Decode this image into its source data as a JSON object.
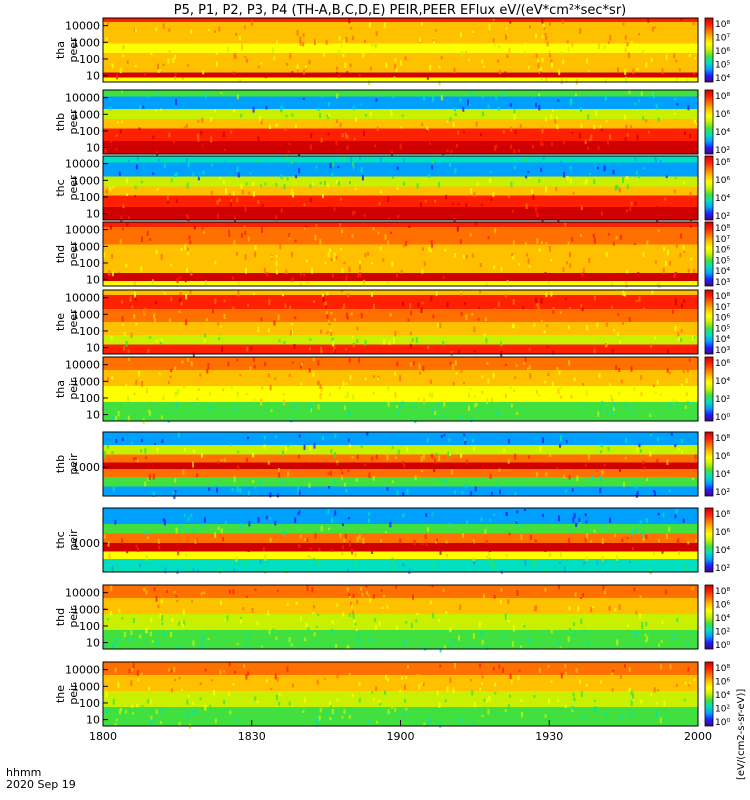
{
  "title": "P5, P1, P2, P3, P4 (TH-A,B,C,D,E) PEIR,PEER EFlux eV/(eV*cm²*sec*sr)",
  "colorbar_label": "[eV/(cm2-s-sr-eV)]",
  "time_axis": {
    "label": "hhmm",
    "date": "2020 Sep 19",
    "ticks": [
      "1800",
      "1830",
      "1900",
      "1930",
      "2000"
    ]
  },
  "colors": {
    "spectrum": [
      "#4b0082",
      "#1e1eff",
      "#00a0ff",
      "#00e0c0",
      "#40e040",
      "#c8f000",
      "#ffff00",
      "#ffc000",
      "#ff7000",
      "#ff2000",
      "#d00000"
    ],
    "background": "#ffffff"
  },
  "chart_data": [
    {
      "type": "heatmap",
      "probe": "tha",
      "ylabel_top": "tha",
      "ylabel_bottom": "peer",
      "scale": "log",
      "yticks": [
        "10",
        "100",
        "1000",
        "10000"
      ],
      "cbar_ticks": [
        "10⁸",
        "10⁷",
        "10⁶",
        "10⁵",
        "10⁴"
      ],
      "bands": [
        [
          0,
          0.06,
          9
        ],
        [
          0.06,
          0.4,
          7
        ],
        [
          0.4,
          0.55,
          6
        ],
        [
          0.55,
          0.85,
          7
        ],
        [
          0.85,
          0.93,
          10
        ],
        [
          0.93,
          1,
          6
        ]
      ]
    },
    {
      "type": "heatmap",
      "probe": "thb",
      "ylabel_top": "thb",
      "ylabel_bottom": "peer",
      "scale": "log",
      "yticks": [
        "10",
        "100",
        "1000",
        "10000"
      ],
      "cbar_ticks": [
        "10⁸",
        "10⁶",
        "10⁴",
        "10²"
      ],
      "bands": [
        [
          0,
          0.1,
          4
        ],
        [
          0.1,
          0.3,
          2
        ],
        [
          0.3,
          0.45,
          5
        ],
        [
          0.45,
          0.6,
          7
        ],
        [
          0.6,
          0.8,
          9
        ],
        [
          0.8,
          1,
          10
        ]
      ]
    },
    {
      "type": "heatmap",
      "probe": "thc",
      "ylabel_top": "thc",
      "ylabel_bottom": "peer",
      "scale": "log",
      "yticks": [
        "10",
        "100",
        "1000",
        "10000"
      ],
      "cbar_ticks": [
        "10⁸",
        "10⁶",
        "10⁴",
        "10²"
      ],
      "bands": [
        [
          0,
          0.1,
          3
        ],
        [
          0.1,
          0.32,
          2
        ],
        [
          0.32,
          0.48,
          5
        ],
        [
          0.48,
          0.62,
          7
        ],
        [
          0.62,
          0.8,
          9
        ],
        [
          0.8,
          1,
          10
        ]
      ]
    },
    {
      "type": "heatmap",
      "probe": "thd",
      "ylabel_top": "thd",
      "ylabel_bottom": "peer",
      "scale": "log",
      "yticks": [
        "10",
        "100",
        "1000",
        "10000"
      ],
      "cbar_ticks": [
        "10⁸",
        "10⁷",
        "10⁶",
        "10⁵",
        "10⁴",
        "10³"
      ],
      "bands": [
        [
          0,
          0.08,
          9
        ],
        [
          0.08,
          0.35,
          8
        ],
        [
          0.35,
          0.55,
          7
        ],
        [
          0.55,
          0.8,
          7
        ],
        [
          0.8,
          0.92,
          10
        ],
        [
          0.92,
          1,
          6
        ]
      ]
    },
    {
      "type": "heatmap",
      "probe": "the",
      "ylabel_top": "the",
      "ylabel_bottom": "peer",
      "scale": "log",
      "yticks": [
        "10",
        "100",
        "1000",
        "10000"
      ],
      "cbar_ticks": [
        "10⁸",
        "10⁷",
        "10⁶",
        "10⁵",
        "10⁴",
        "10³"
      ],
      "bands": [
        [
          0,
          0.08,
          7
        ],
        [
          0.08,
          0.3,
          9
        ],
        [
          0.3,
          0.5,
          8
        ],
        [
          0.5,
          0.7,
          7
        ],
        [
          0.7,
          0.85,
          5
        ],
        [
          0.85,
          1,
          9
        ]
      ]
    },
    {
      "type": "heatmap",
      "probe": "tha",
      "ylabel_top": "tha",
      "ylabel_bottom": "peir",
      "scale": "log",
      "yticks": [
        "10",
        "100",
        "1000",
        "10000"
      ],
      "cbar_ticks": [
        "10⁶",
        "10⁴",
        "10²",
        "10⁰"
      ],
      "bands": [
        [
          0,
          0.2,
          8
        ],
        [
          0.2,
          0.45,
          7
        ],
        [
          0.45,
          0.7,
          6
        ],
        [
          0.7,
          1,
          4
        ]
      ]
    },
    {
      "type": "heatmap",
      "probe": "thb",
      "ylabel_top": "thb",
      "ylabel_bottom": "peir",
      "scale": "log",
      "yticks": [
        "1000"
      ],
      "cbar_ticks": [
        "10⁸",
        "10⁶",
        "10⁴",
        "10²"
      ],
      "bands": [
        [
          0,
          0.2,
          2
        ],
        [
          0.2,
          0.35,
          5
        ],
        [
          0.35,
          0.48,
          8
        ],
        [
          0.48,
          0.58,
          10
        ],
        [
          0.58,
          0.7,
          8
        ],
        [
          0.7,
          0.85,
          4
        ],
        [
          0.85,
          1,
          2
        ]
      ]
    },
    {
      "type": "heatmap",
      "probe": "thc",
      "ylabel_top": "thc",
      "ylabel_bottom": "peir",
      "scale": "log",
      "yticks": [
        "1000"
      ],
      "cbar_ticks": [
        "10⁸",
        "10⁶",
        "10⁴",
        "10²"
      ],
      "bands": [
        [
          0,
          0.25,
          2
        ],
        [
          0.25,
          0.4,
          4
        ],
        [
          0.4,
          0.55,
          8
        ],
        [
          0.55,
          0.68,
          10
        ],
        [
          0.68,
          0.8,
          6
        ],
        [
          0.8,
          1,
          3
        ]
      ]
    },
    {
      "type": "heatmap",
      "probe": "thd",
      "ylabel_top": "thd",
      "ylabel_bottom": "peir",
      "scale": "log",
      "yticks": [
        "10",
        "100",
        "1000",
        "10000"
      ],
      "cbar_ticks": [
        "10⁸",
        "10⁶",
        "10⁴",
        "10²",
        "10⁰"
      ],
      "bands": [
        [
          0,
          0.2,
          8
        ],
        [
          0.2,
          0.45,
          7
        ],
        [
          0.45,
          0.7,
          5
        ],
        [
          0.7,
          1,
          4
        ]
      ]
    },
    {
      "type": "heatmap",
      "probe": "the",
      "ylabel_top": "the",
      "ylabel_bottom": "peir",
      "scale": "log",
      "yticks": [
        "10",
        "100",
        "1000",
        "10000"
      ],
      "cbar_ticks": [
        "10⁸",
        "10⁶",
        "10⁴",
        "10²",
        "10⁰"
      ],
      "bands": [
        [
          0,
          0.2,
          8
        ],
        [
          0.2,
          0.45,
          7
        ],
        [
          0.45,
          0.7,
          5
        ],
        [
          0.7,
          1,
          4
        ]
      ]
    }
  ]
}
